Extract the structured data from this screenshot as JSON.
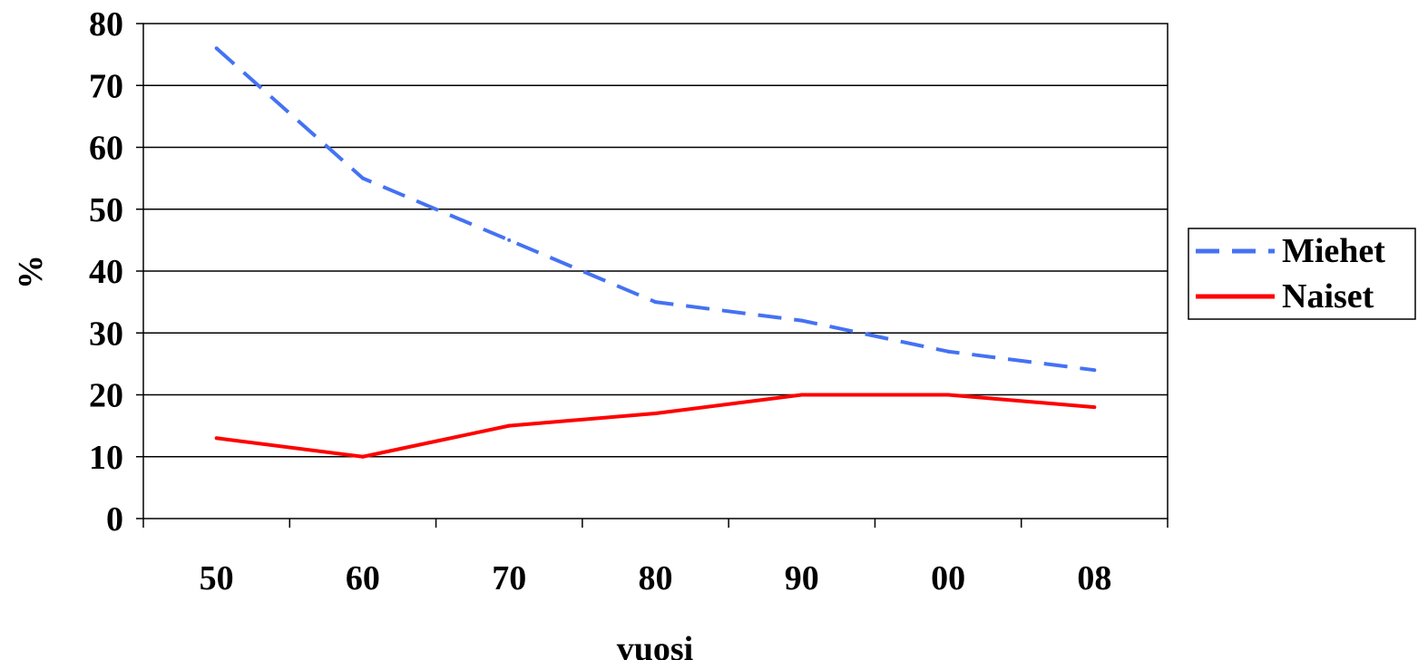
{
  "chart_data": {
    "type": "line",
    "title": "",
    "xlabel": "vuosi",
    "ylabel": "%",
    "categories": [
      "50",
      "60",
      "70",
      "80",
      "90",
      "00",
      "08"
    ],
    "ylim": [
      0,
      80
    ],
    "yticks": [
      "0",
      "10",
      "20",
      "30",
      "40",
      "50",
      "60",
      "70",
      "80"
    ],
    "grid": "horizontal",
    "legend": "right",
    "series": [
      {
        "name": "Miehet",
        "values": [
          76,
          55,
          45,
          35,
          32,
          27,
          24
        ],
        "color": "#4472f2",
        "style": "dashed"
      },
      {
        "name": "Naiset",
        "values": [
          13,
          10,
          15,
          17,
          20,
          20,
          18
        ],
        "color": "#ff0000",
        "style": "solid"
      }
    ]
  }
}
